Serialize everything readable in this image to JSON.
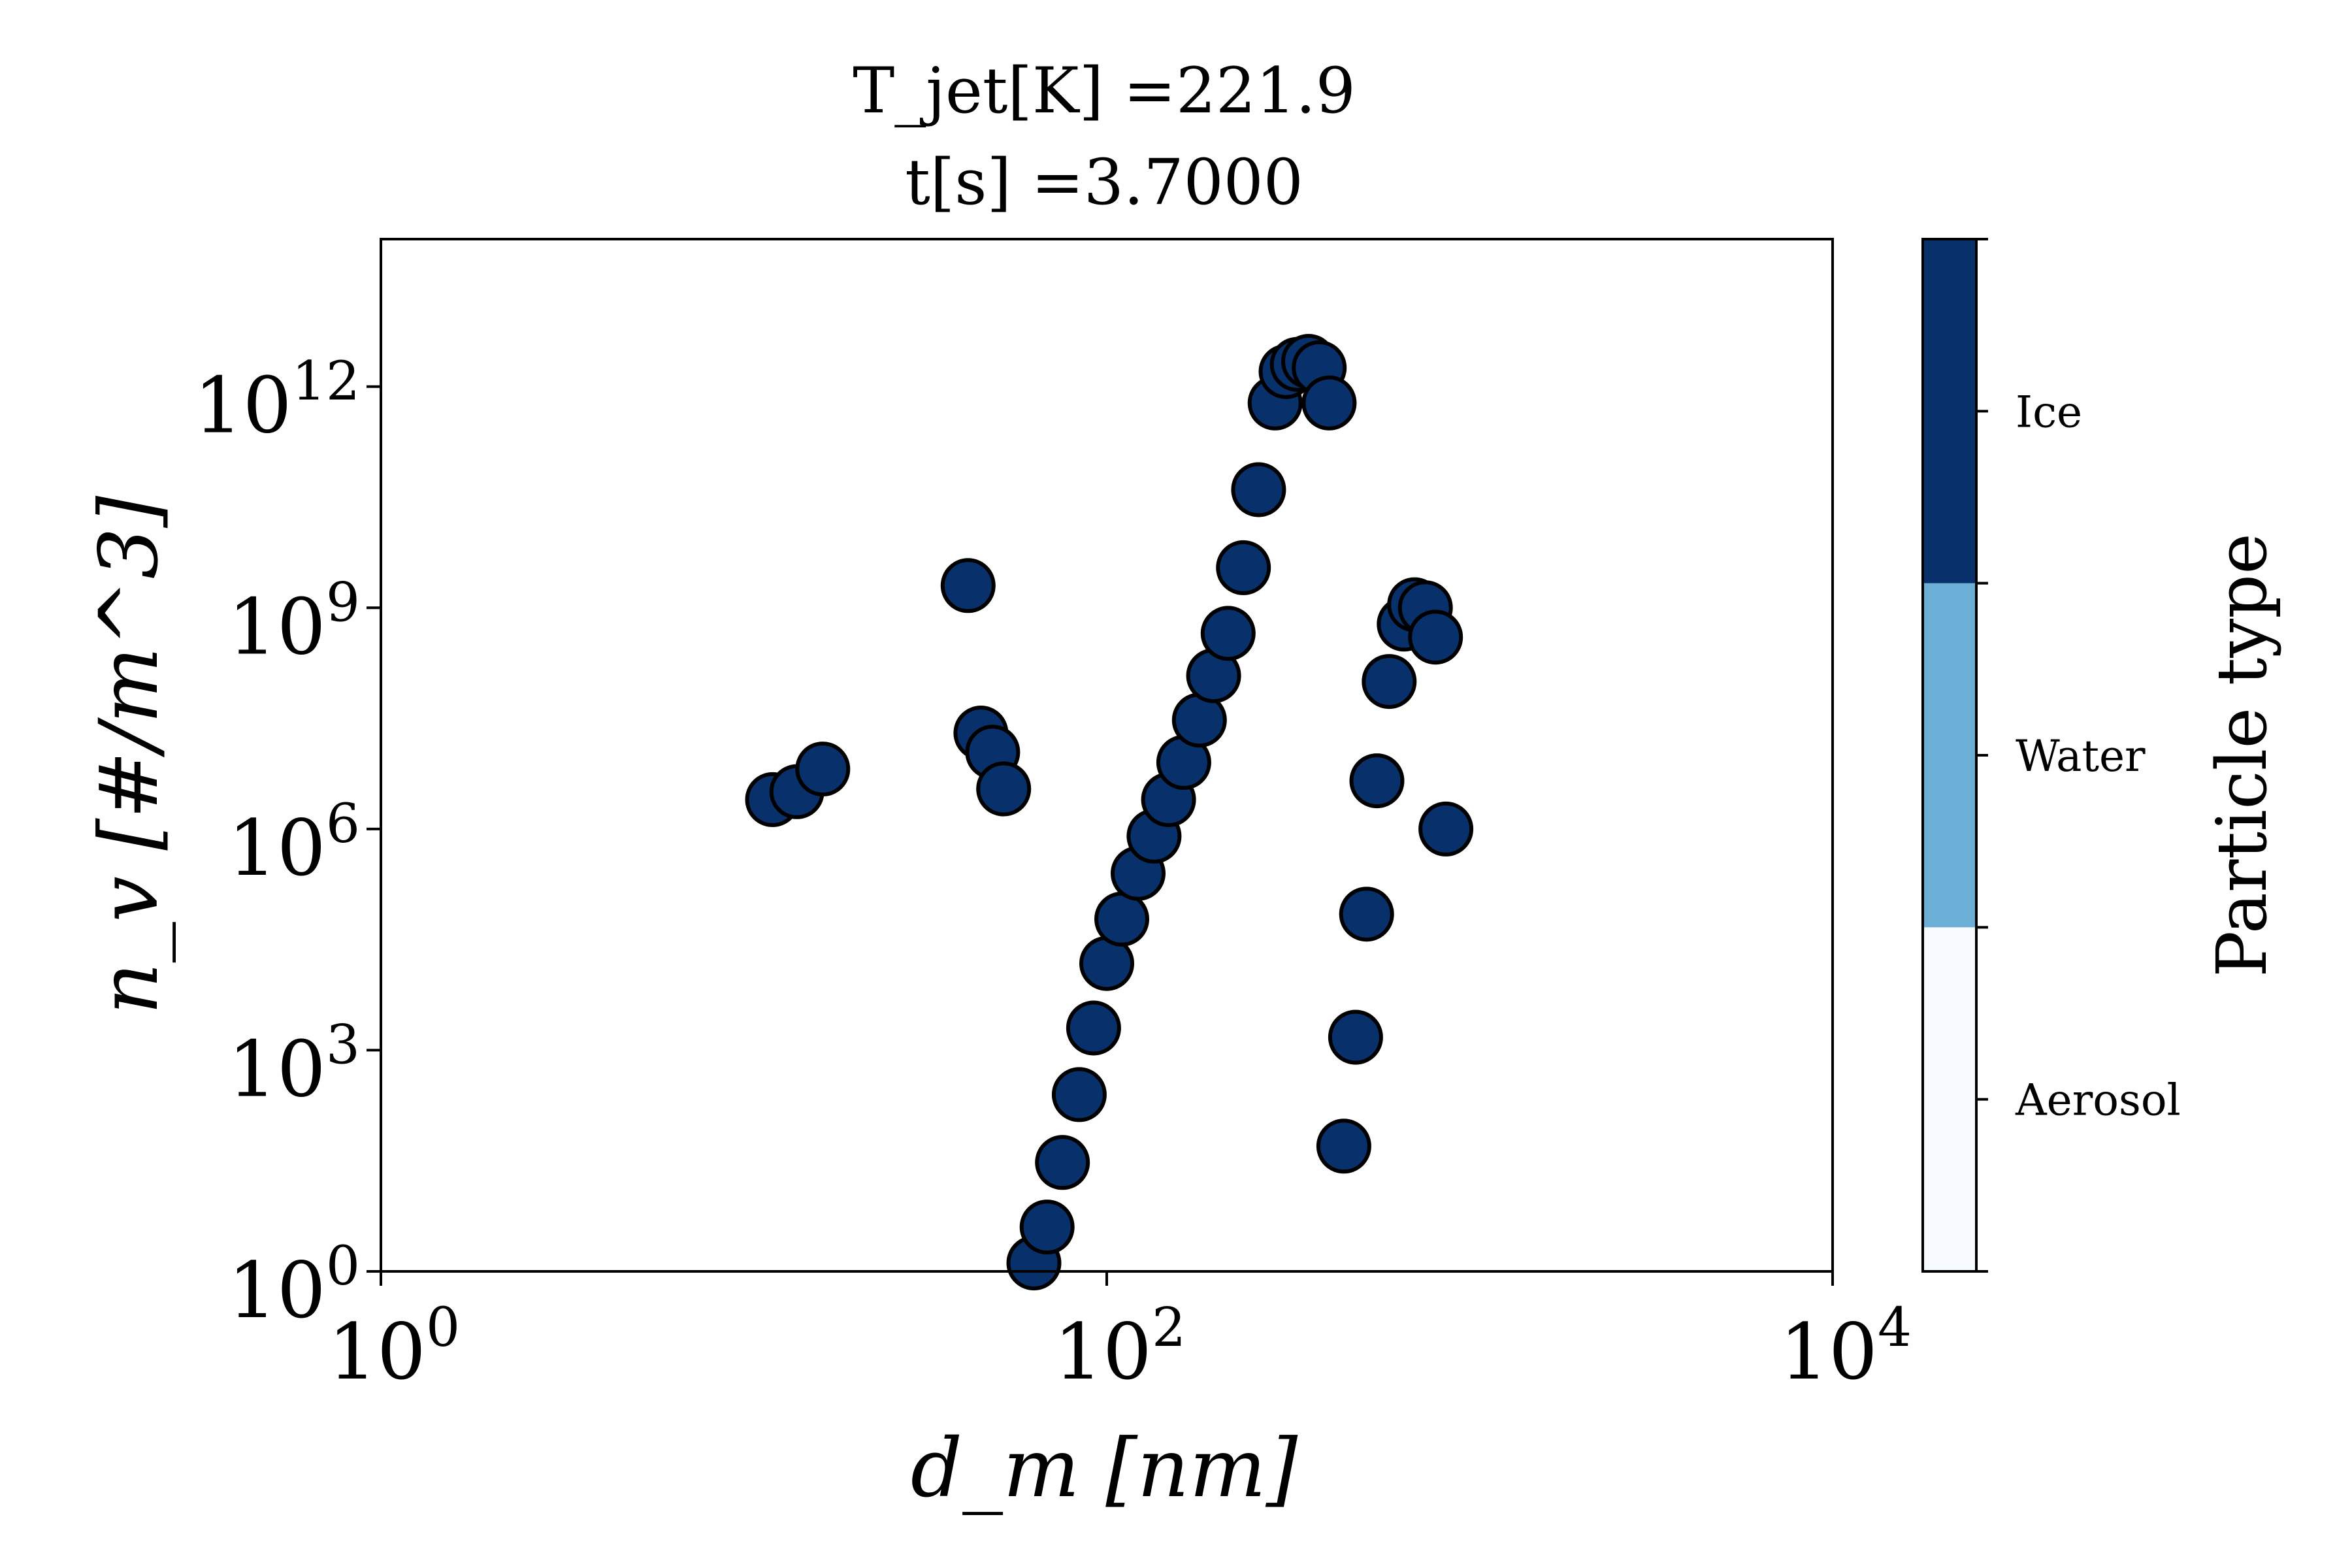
{
  "chart_data": {
    "type": "scatter",
    "title_lines": [
      "T_jet[K] =221.9",
      "t[s] =3.7000"
    ],
    "xlabel": "d_m [nm]",
    "ylabel": "n_v [#/m^3]",
    "xscale": "log",
    "yscale": "log",
    "xlim": [
      1,
      10000
    ],
    "ylim": [
      1,
      100000000000000.0
    ],
    "x_ticks": [
      {
        "base": "10",
        "exp": "0"
      },
      {
        "base": "10",
        "exp": "2"
      },
      {
        "base": "10",
        "exp": "4"
      }
    ],
    "y_ticks": [
      {
        "base": "10",
        "exp": "0"
      },
      {
        "base": "10",
        "exp": "3"
      },
      {
        "base": "10",
        "exp": "6"
      },
      {
        "base": "10",
        "exp": "9"
      },
      {
        "base": "10",
        "exp": "12"
      }
    ],
    "grid": false,
    "marker_color": "#08306b",
    "marker_edge": "#000000",
    "colorbar": {
      "label": "Particle type",
      "categories": [
        "Aerosol",
        "Water",
        "Ice"
      ],
      "colors": [
        "#f7fbff",
        "#6baed6",
        "#08306b"
      ]
    },
    "points": [
      {
        "x": 12.0,
        "y": 2500000.0
      },
      {
        "x": 14.0,
        "y": 3200000.0
      },
      {
        "x": 16.5,
        "y": 6500000.0
      },
      {
        "x": 41.5,
        "y": 2000000000.0
      },
      {
        "x": 45.0,
        "y": 20000000.0
      },
      {
        "x": 48.5,
        "y": 11000000.0
      },
      {
        "x": 52.0,
        "y": 3500000.0
      },
      {
        "x": 63.0,
        "y": 1.3
      },
      {
        "x": 68.5,
        "y": 4.0
      },
      {
        "x": 75.5,
        "y": 30
      },
      {
        "x": 84.0,
        "y": 250
      },
      {
        "x": 92.0,
        "y": 2000
      },
      {
        "x": 100.0,
        "y": 15000
      },
      {
        "x": 110.0,
        "y": 60000
      },
      {
        "x": 122.0,
        "y": 250000.0
      },
      {
        "x": 135.0,
        "y": 800000.0
      },
      {
        "x": 148.0,
        "y": 2500000.0
      },
      {
        "x": 163.0,
        "y": 8000000.0
      },
      {
        "x": 180.0,
        "y": 30000000.0
      },
      {
        "x": 197.0,
        "y": 120000000.0
      },
      {
        "x": 216.0,
        "y": 450000000.0
      },
      {
        "x": 238.0,
        "y": 3500000000.0
      },
      {
        "x": 262.0,
        "y": 40000000000.0
      },
      {
        "x": 291.0,
        "y": 600000000000.0
      },
      {
        "x": 312.0,
        "y": 1600000000000.0
      },
      {
        "x": 335.0,
        "y": 2000000000000.0
      },
      {
        "x": 360.0,
        "y": 2200000000000.0
      },
      {
        "x": 385.0,
        "y": 1800000000000.0
      },
      {
        "x": 410.0,
        "y": 600000000000.0
      },
      {
        "x": 450.0,
        "y": 50
      },
      {
        "x": 485.0,
        "y": 1500
      },
      {
        "x": 520.0,
        "y": 70000
      },
      {
        "x": 555.0,
        "y": 4500000.0
      },
      {
        "x": 600.0,
        "y": 100000000.0
      },
      {
        "x": 660.0,
        "y": 600000000.0
      },
      {
        "x": 705.0,
        "y": 1100000000.0
      },
      {
        "x": 755.0,
        "y": 1000000000.0
      },
      {
        "x": 805.0,
        "y": 400000000.0
      },
      {
        "x": 860.0,
        "y": 1000000.0
      }
    ]
  }
}
